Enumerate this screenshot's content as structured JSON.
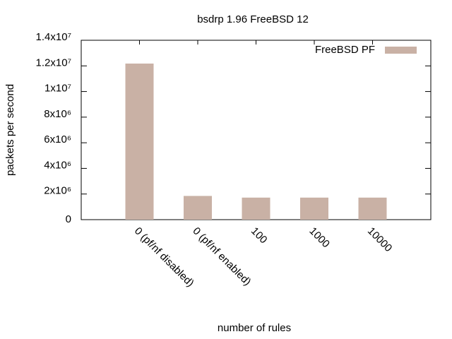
{
  "chart_data": {
    "type": "bar",
    "title": "bsdrp 1.96 FreeBSD 12",
    "x_label": "number of rules",
    "y_label": "packets per second",
    "categories": [
      "0 (pf/nf disabled)",
      "0 (pf/nf enabled)",
      "100",
      "1000",
      "10000"
    ],
    "series": [
      {
        "name": "FreeBSD PF",
        "color": "#c9b1a5",
        "values": [
          12180000,
          1850000,
          1720000,
          1720000,
          1720000
        ]
      }
    ],
    "ylim": [
      0,
      14000000
    ],
    "yticks": [
      0,
      {
        "value": 2000000,
        "label": "2x10⁶"
      },
      {
        "value": 4000000,
        "label": "4x10⁶"
      },
      {
        "value": 6000000,
        "label": "6x10⁶"
      },
      {
        "value": 8000000,
        "label": "8x10⁶"
      },
      {
        "value": 10000000,
        "label": "1x10⁷"
      },
      {
        "value": 12000000,
        "label": "1.2x10⁷"
      },
      {
        "value": 14000000,
        "label": "1.4x10⁷"
      }
    ],
    "legend_position": "top-right",
    "grid": false
  }
}
